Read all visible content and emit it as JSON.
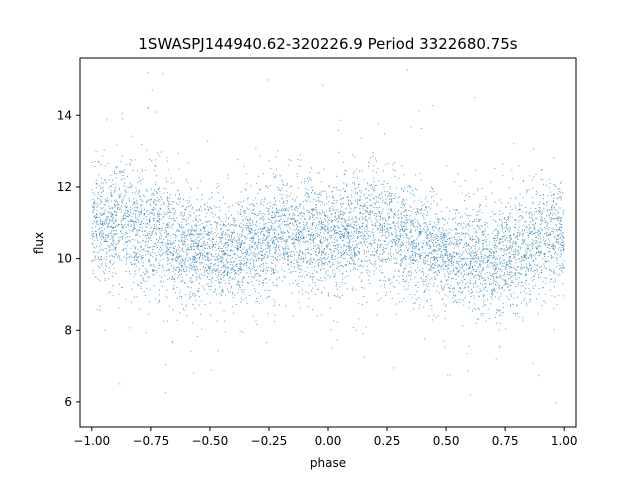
{
  "chart_data": {
    "type": "scatter",
    "title": "1SWASPJ144940.62-320226.9 Period 3322680.75s",
    "xlabel": "phase",
    "ylabel": "flux",
    "xlim": [
      -1.05,
      1.05
    ],
    "ylim": [
      5.3,
      15.6
    ],
    "x_ticks": [
      -1.0,
      -0.75,
      -0.5,
      -0.25,
      0.0,
      0.25,
      0.5,
      0.75,
      1.0
    ],
    "x_tick_labels": [
      "−1.00",
      "−0.75",
      "−0.50",
      "−0.25",
      "0.00",
      "0.25",
      "0.50",
      "0.75",
      "1.00"
    ],
    "y_ticks": [
      6,
      8,
      10,
      12,
      14
    ],
    "y_tick_labels": [
      "6",
      "8",
      "10",
      "12",
      "14"
    ],
    "grid": false,
    "legend": "none",
    "series": [
      {
        "color": "#1f77b4",
        "marker": "dot",
        "x_range": [
          -1.0,
          1.0
        ],
        "profile": {
          "phase": [
            -1.0,
            -0.9,
            -0.8,
            -0.75,
            -0.7,
            -0.6,
            -0.5,
            -0.4,
            -0.3,
            -0.25,
            -0.2,
            -0.1,
            0.0,
            0.1,
            0.2,
            0.25,
            0.3,
            0.4,
            0.5,
            0.6,
            0.7,
            0.75,
            0.8,
            0.9,
            1.0
          ],
          "median_flux": [
            11.1,
            10.9,
            10.9,
            10.8,
            10.6,
            10.3,
            10.2,
            10.2,
            10.5,
            10.6,
            10.7,
            10.7,
            10.6,
            10.7,
            10.8,
            10.8,
            10.7,
            10.4,
            10.1,
            10.0,
            9.9,
            10.0,
            10.3,
            10.5,
            10.6
          ],
          "spread": [
            0.7,
            0.8,
            0.9,
            0.9,
            0.85,
            0.75,
            0.7,
            0.7,
            0.75,
            0.8,
            0.8,
            0.75,
            0.75,
            0.8,
            0.85,
            0.9,
            0.85,
            0.75,
            0.7,
            0.75,
            0.8,
            0.85,
            0.8,
            0.75,
            0.7
          ]
        },
        "flux_min": 5.7,
        "flux_max": 15.3
      }
    ]
  },
  "colors": {
    "points": "#1f77b4",
    "axes": "#000000",
    "background": "#ffffff"
  }
}
